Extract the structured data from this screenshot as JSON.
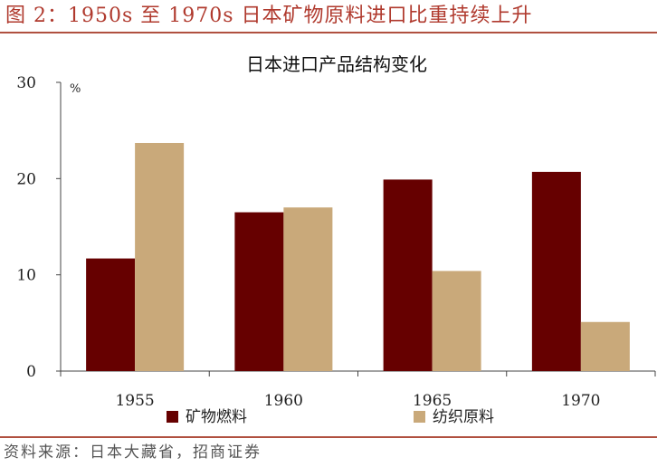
{
  "figure": {
    "label": "图 2：1950s 至 1970s 日本矿物原料进口比重持续上升",
    "source": "资料来源：日本大藏省，招商证券"
  },
  "chart_data": {
    "type": "bar",
    "title": "日本进口产品结构变化",
    "unit": "%",
    "categories": [
      "1955",
      "1960",
      "1965",
      "1970"
    ],
    "series": [
      {
        "name": "矿物燃料",
        "color": "#660000",
        "values": [
          11.7,
          16.5,
          19.9,
          20.7
        ]
      },
      {
        "name": "纺织原料",
        "color": "#c9a97a",
        "values": [
          23.7,
          17.0,
          10.4,
          5.1
        ]
      }
    ],
    "ylim": [
      0,
      30
    ],
    "yticks": [
      0,
      10,
      20,
      30
    ],
    "grid": false,
    "legend_position": "bottom"
  }
}
